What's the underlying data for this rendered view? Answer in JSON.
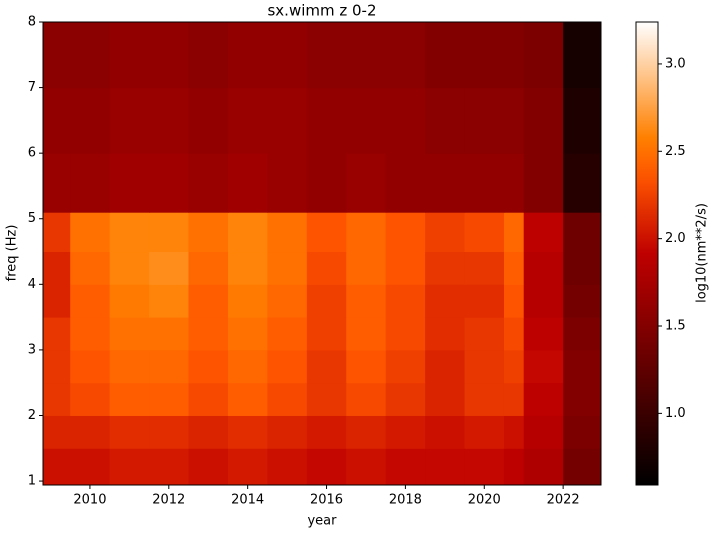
{
  "chart_data": {
    "type": "heatmap",
    "title": "sx.wimm z 0-2",
    "xlabel": "year",
    "ylabel": "freq (Hz)",
    "colormap": "gist_heat",
    "x_bins": [
      2008.81,
      2009.5,
      2010.5,
      2011.5,
      2012.5,
      2013.5,
      2014.5,
      2015.5,
      2016.5,
      2017.5,
      2018.5,
      2019.5,
      2020.5,
      2021,
      2022,
      2022.96
    ],
    "y_bins": [
      0.94,
      1.5,
      2,
      2.5,
      3,
      3.5,
      4,
      4.5,
      5.1,
      6,
      7,
      8
    ],
    "values": [
      [
        2.0,
        2.0,
        2.05,
        2.05,
        2.0,
        2.05,
        2.0,
        1.95,
        2.0,
        1.95,
        1.95,
        1.95,
        1.9,
        1.8,
        1.4
      ],
      [
        2.1,
        2.1,
        2.15,
        2.15,
        2.1,
        2.15,
        2.1,
        2.05,
        2.1,
        2.05,
        2.0,
        2.05,
        2.0,
        1.85,
        1.45
      ],
      [
        2.2,
        2.3,
        2.4,
        2.4,
        2.3,
        2.4,
        2.3,
        2.2,
        2.3,
        2.2,
        2.1,
        2.2,
        2.2,
        1.9,
        1.5
      ],
      [
        2.2,
        2.35,
        2.45,
        2.45,
        2.35,
        2.45,
        2.35,
        2.2,
        2.35,
        2.25,
        2.1,
        2.2,
        2.25,
        1.95,
        1.5
      ],
      [
        2.2,
        2.4,
        2.5,
        2.5,
        2.4,
        2.5,
        2.4,
        2.25,
        2.4,
        2.3,
        2.15,
        2.2,
        2.3,
        1.9,
        1.45
      ],
      [
        2.1,
        2.4,
        2.55,
        2.6,
        2.4,
        2.55,
        2.45,
        2.25,
        2.4,
        2.3,
        2.15,
        2.15,
        2.35,
        1.85,
        1.4
      ],
      [
        2.1,
        2.45,
        2.6,
        2.65,
        2.45,
        2.6,
        2.5,
        2.3,
        2.45,
        2.35,
        2.2,
        2.2,
        2.4,
        1.85,
        1.35
      ],
      [
        2.2,
        2.5,
        2.6,
        2.6,
        2.5,
        2.6,
        2.5,
        2.35,
        2.45,
        2.35,
        2.25,
        2.3,
        2.45,
        1.9,
        1.35
      ],
      [
        1.65,
        1.65,
        1.7,
        1.7,
        1.65,
        1.7,
        1.65,
        1.6,
        1.65,
        1.6,
        1.6,
        1.6,
        1.6,
        1.5,
        0.85
      ],
      [
        1.6,
        1.6,
        1.65,
        1.65,
        1.6,
        1.65,
        1.65,
        1.6,
        1.6,
        1.6,
        1.55,
        1.55,
        1.55,
        1.5,
        0.8
      ],
      [
        1.55,
        1.55,
        1.6,
        1.6,
        1.55,
        1.6,
        1.6,
        1.55,
        1.55,
        1.55,
        1.5,
        1.5,
        1.5,
        1.45,
        0.75
      ]
    ],
    "xlim": [
      2008.81,
      2022.96
    ],
    "ylim": [
      0.94,
      8
    ],
    "xticks": [
      2010,
      2012,
      2014,
      2016,
      2018,
      2020,
      2022
    ],
    "yticks": [
      1,
      2,
      3,
      4,
      5,
      6,
      7,
      8
    ],
    "colorbar": {
      "label": "log10(nm**2/s)",
      "clim": [
        0.59,
        3.24
      ],
      "ticks": [
        {
          "value": 1.0,
          "label": "1.0"
        },
        {
          "value": 1.5,
          "label": "1.5"
        },
        {
          "value": 2.0,
          "label": "2.0"
        },
        {
          "value": 2.5,
          "label": "2.5"
        },
        {
          "value": 3.0,
          "label": "3.0"
        }
      ]
    }
  }
}
